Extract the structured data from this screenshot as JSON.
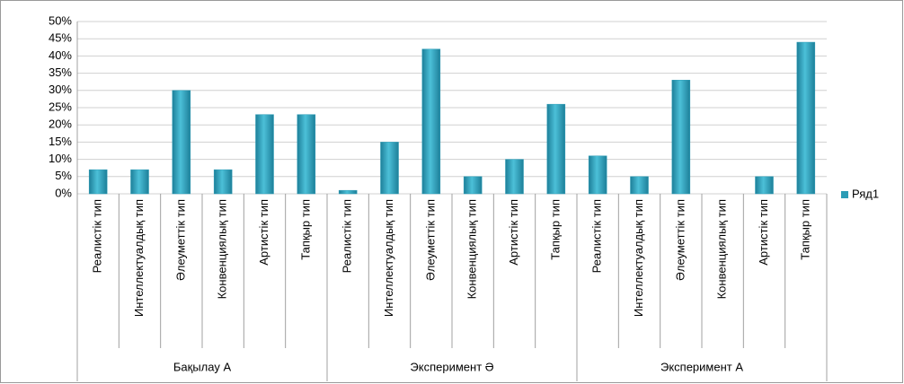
{
  "chart_data": {
    "type": "bar",
    "categories": [
      "Реалистік тип",
      "Интеллектуалдық тип",
      "Әлеуметтік тип",
      "Конвенциялық тип",
      "Артистік тип",
      "Тапқыр тип",
      "Реалистік тип",
      "Интеллектуалдық тип",
      "Әлеуметтік тип",
      "Конвенциялық тип",
      "Артистік тип",
      "Тапқыр тип",
      "Реалистік тип",
      "Интеллектуалдық тип",
      "Әлеуметтік тип",
      "Конвенциялық тип",
      "Артистік тип",
      "Тапқыр тип"
    ],
    "groups": [
      "Бақылау А",
      "Эксперимент Ә",
      "Эксперимент А"
    ],
    "series": [
      {
        "name": "Ряд1",
        "color": "#2b9cb6",
        "values": [
          7,
          7,
          30,
          7,
          23,
          23,
          1,
          15,
          42,
          5,
          10,
          26,
          11,
          5,
          33,
          0,
          5,
          44
        ]
      }
    ],
    "ylim": [
      0,
      50
    ],
    "yticks": [
      {
        "value": 0,
        "label": "0%"
      },
      {
        "value": 5,
        "label": "5%"
      },
      {
        "value": 10,
        "label": "10%"
      },
      {
        "value": 15,
        "label": "15%"
      },
      {
        "value": 20,
        "label": "20%"
      },
      {
        "value": 25,
        "label": "25%"
      },
      {
        "value": 30,
        "label": "30%"
      },
      {
        "value": 35,
        "label": "35%"
      },
      {
        "value": 40,
        "label": "40%"
      },
      {
        "value": 45,
        "label": "45%"
      },
      {
        "value": 50,
        "label": "50%"
      }
    ],
    "grid": true,
    "legend": "right"
  }
}
